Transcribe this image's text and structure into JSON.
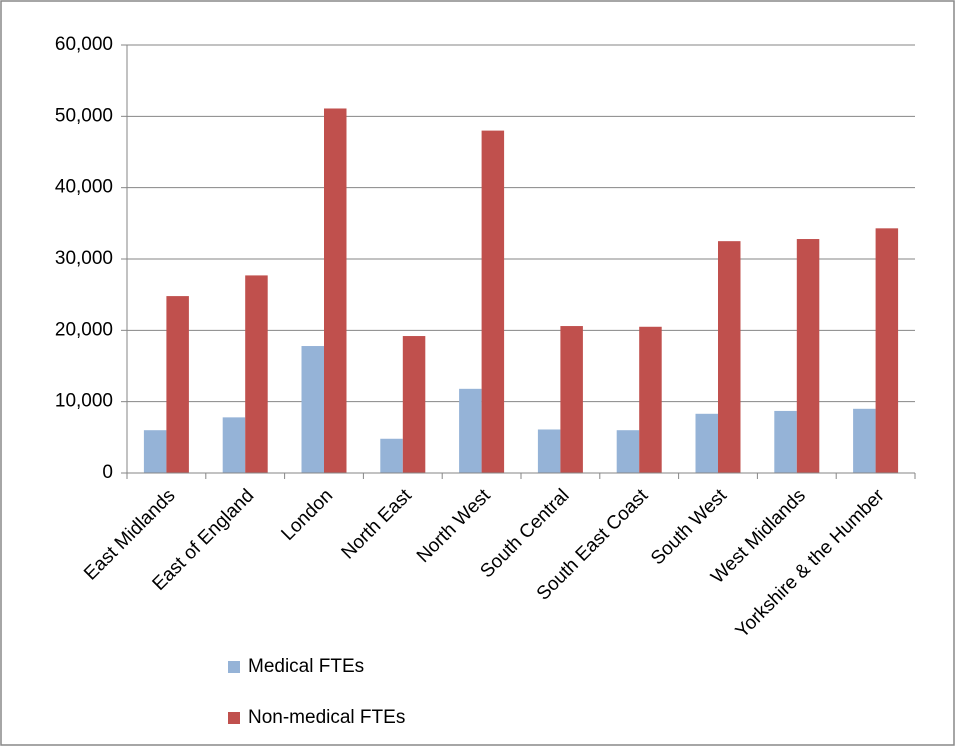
{
  "chart_data": {
    "type": "bar",
    "categories": [
      "East Midlands",
      "East of England",
      "London",
      "North East",
      "North West",
      "South Central",
      "South East Coast",
      "South West",
      "West Midlands",
      "Yorkshire & the Humber"
    ],
    "series": [
      {
        "name": "Medical FTEs",
        "color": "#95b3d7",
        "values": [
          6000,
          7800,
          17800,
          4800,
          11800,
          6100,
          6000,
          8300,
          8700,
          9000
        ]
      },
      {
        "name": "Non-medical FTEs",
        "color": "#c0504d",
        "values": [
          24800,
          27700,
          51100,
          19200,
          48000,
          20600,
          20500,
          32500,
          32800,
          34300
        ]
      }
    ],
    "ylim": [
      0,
      60000
    ],
    "yticks": [
      0,
      {
        "value": 10000,
        "label": "10,000"
      },
      {
        "value": 20000,
        "label": "20,000"
      },
      {
        "value": 30000,
        "label": "30,000"
      },
      {
        "value": 40000,
        "label": "40,000"
      },
      {
        "value": 50000,
        "label": "50,000"
      },
      {
        "value": 60000,
        "label": "60,000"
      }
    ],
    "grid": true,
    "legend": "bottom-left"
  }
}
